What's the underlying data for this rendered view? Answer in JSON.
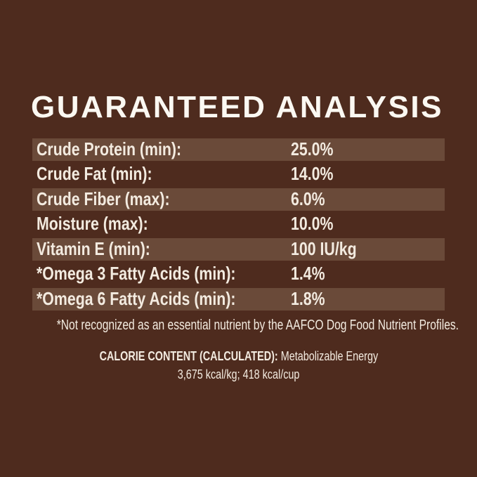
{
  "title": "GUARANTEED ANALYSIS",
  "colors": {
    "background": "#4E2B1E",
    "row_stripe": "#6A4A39",
    "text": "#F3EBE0",
    "title_text": "#FBF8F2"
  },
  "analysis_table": {
    "rows": [
      {
        "label": "Crude Protein (min):",
        "value": "25.0%"
      },
      {
        "label": "Crude Fat (min):",
        "value": "14.0%"
      },
      {
        "label": "Crude Fiber (max):",
        "value": "6.0%"
      },
      {
        "label": "Moisture (max):",
        "value": "10.0%"
      },
      {
        "label": "Vitamin E (min):",
        "value": "100 IU/kg"
      },
      {
        "label": "*Omega 3 Fatty Acids (min):",
        "value": "1.4%"
      },
      {
        "label": "*Omega 6 Fatty Acids (min):",
        "value": "1.8%"
      }
    ]
  },
  "footnote": "*Not recognized as an essential nutrient by the AAFCO Dog Food Nutrient Profiles.",
  "calorie_content": {
    "heading": "CALORIE CONTENT (CALCULATED):",
    "description": "Metabolizable Energy",
    "values": "3,675 kcal/kg; 418 kcal/cup"
  }
}
